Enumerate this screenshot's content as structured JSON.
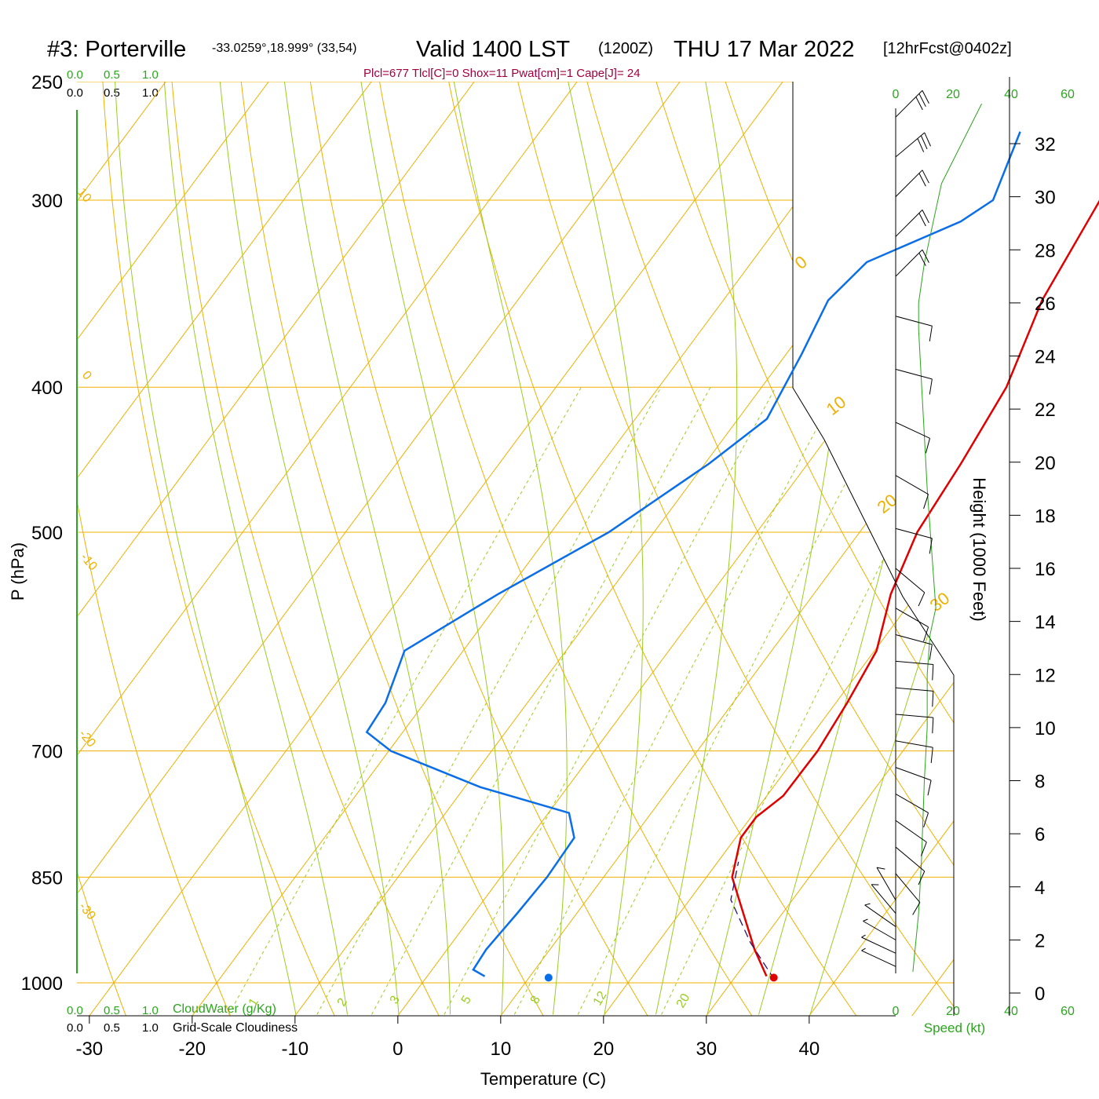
{
  "header": {
    "station": "#3: Porterville",
    "coords": "-33.0259°,18.999° (33,54)",
    "valid": "Valid 1400 LST",
    "zulu": "(1200Z)",
    "date": "THU 17 Mar 2022",
    "forecast": "[12hrFcst@0402z]",
    "indices": "Plcl=677 Tlcl[C]=0 Shox=11 Pwat[cm]=1 Cape[J]= 24"
  },
  "colors": {
    "temperature": "#e00000",
    "dewpoint": "#0a6ee8",
    "isobar_isotherm": "#f0b000",
    "moist_adiabat": "#9acd20",
    "mixing_ratio": "#9acd20",
    "green_labels": "#2aa51c",
    "index_text": "#a0003e"
  },
  "labels": {
    "top_green_scale": [
      "0.0",
      "0.5",
      "1.0"
    ],
    "top_black_scale": [
      "0.0",
      "0.5",
      "1.0"
    ],
    "bottom_green_scale": [
      "0.0",
      "0.5",
      "1.0"
    ],
    "bottom_black_scale": [
      "0.0",
      "0.5",
      "1.0"
    ],
    "cloudwater": "CloudWater (g/Kg)",
    "cloudiness": "Grid-Scale Cloudiness",
    "speed_axis": "Speed (kt)",
    "speed_ticks_top": [
      "0",
      "20",
      "40",
      "60"
    ],
    "speed_ticks_bottom": [
      "0",
      "20",
      "40",
      "60"
    ]
  },
  "chart_data": {
    "type": "line",
    "subtype": "skew-T log-P sounding",
    "xlabel": "Temperature (C)",
    "ylabel": "P (hPa)",
    "y2label": "Height (1000 Feet)",
    "x_ticks": [
      -30,
      -20,
      -10,
      0,
      10,
      20,
      30,
      40
    ],
    "y_ticks": [
      250,
      300,
      400,
      500,
      700,
      850,
      1000
    ],
    "y2_ticks": [
      0,
      2,
      4,
      6,
      8,
      10,
      12,
      14,
      16,
      18,
      20,
      22,
      24,
      26,
      28,
      30,
      32
    ],
    "isotherm_labels": [
      "10",
      "0",
      "-10",
      "-20",
      "-30",
      "0",
      "10",
      "20",
      "30"
    ],
    "mixing_ratio_labels": [
      "1",
      "2",
      "3",
      "5",
      "8",
      "12",
      "20"
    ],
    "series": [
      {
        "name": "Temperature",
        "points": [
          [
            33.0,
            990
          ],
          [
            29.9,
            950
          ],
          [
            26.3,
            900
          ],
          [
            22.5,
            850
          ],
          [
            20.5,
            800
          ],
          [
            20.5,
            775
          ],
          [
            21.6,
            750
          ],
          [
            21.7,
            700
          ],
          [
            21.1,
            650
          ],
          [
            20.2,
            600
          ],
          [
            17.5,
            550
          ],
          [
            15.6,
            500
          ],
          [
            14.9,
            450
          ],
          [
            13.8,
            400
          ],
          [
            11.0,
            350
          ],
          [
            9.4,
            300
          ],
          [
            8.0,
            270
          ]
        ]
      },
      {
        "name": "Dewpoint",
        "points": [
          [
            5.6,
            990
          ],
          [
            4.0,
            980
          ],
          [
            3.8,
            950
          ],
          [
            4.2,
            900
          ],
          [
            4.5,
            850
          ],
          [
            4.3,
            800
          ],
          [
            2.0,
            770
          ],
          [
            -8.5,
            740
          ],
          [
            -19.8,
            700
          ],
          [
            -23.5,
            680
          ],
          [
            -23.8,
            650
          ],
          [
            -25.7,
            600
          ],
          [
            -20.7,
            550
          ],
          [
            -14.4,
            500
          ],
          [
            -9.6,
            450
          ],
          [
            -7.2,
            420
          ],
          [
            -8.5,
            380
          ],
          [
            -9.8,
            350
          ],
          [
            -8.8,
            330
          ],
          [
            -2.6,
            310
          ],
          [
            -1.0,
            300
          ],
          [
            -3.3,
            270
          ]
        ]
      },
      {
        "name": "Parcel",
        "points": [
          [
            34.0,
            995
          ],
          [
            29.0,
            940
          ],
          [
            24.0,
            880
          ],
          [
            22.0,
            830
          ]
        ]
      }
    ],
    "surface_temperature_marker": [
      33.8,
      992
    ],
    "surface_dewpoint_marker": [
      11.9,
      992
    ],
    "wind_profile": [
      {
        "hgt": 1.0,
        "dir": 65,
        "spd": 10
      },
      {
        "hgt": 1.5,
        "dir": 65,
        "spd": 10
      },
      {
        "hgt": 2.0,
        "dir": 60,
        "spd": 10
      },
      {
        "hgt": 2.5,
        "dir": 55,
        "spd": 10
      },
      {
        "hgt": 3.0,
        "dir": 40,
        "spd": 10
      },
      {
        "hgt": 3.5,
        "dir": 30,
        "spd": 10
      },
      {
        "hgt": 4.5,
        "dir": 220,
        "spd": 10
      },
      {
        "hgt": 5.5,
        "dir": 230,
        "spd": 10
      },
      {
        "hgt": 6.5,
        "dir": 235,
        "spd": 10
      },
      {
        "hgt": 7.5,
        "dir": 240,
        "spd": 10
      },
      {
        "hgt": 8.5,
        "dir": 250,
        "spd": 10
      },
      {
        "hgt": 9.5,
        "dir": 260,
        "spd": 10
      },
      {
        "hgt": 10.5,
        "dir": 265,
        "spd": 10
      },
      {
        "hgt": 11.5,
        "dir": 265,
        "spd": 10
      },
      {
        "hgt": 12.5,
        "dir": 265,
        "spd": 10
      },
      {
        "hgt": 13.5,
        "dir": 255,
        "spd": 10
      },
      {
        "hgt": 14.5,
        "dir": 240,
        "spd": 10
      },
      {
        "hgt": 16.0,
        "dir": 230,
        "spd": 10
      },
      {
        "hgt": 17.5,
        "dir": 255,
        "spd": 10
      },
      {
        "hgt": 19.5,
        "dir": 240,
        "spd": 10
      },
      {
        "hgt": 21.5,
        "dir": 245,
        "spd": 10
      },
      {
        "hgt": 23.5,
        "dir": 255,
        "spd": 10
      },
      {
        "hgt": 25.5,
        "dir": 255,
        "spd": 10
      },
      {
        "hgt": 27.0,
        "dir": 315,
        "spd": 15
      },
      {
        "hgt": 28.5,
        "dir": 315,
        "spd": 15
      },
      {
        "hgt": 30.0,
        "dir": 315,
        "spd": 20
      },
      {
        "hgt": 31.5,
        "dir": 310,
        "spd": 25
      },
      {
        "hgt": 33.0,
        "dir": 315,
        "spd": 30
      }
    ],
    "speed_profile": [
      [
        6,
        0.8
      ],
      [
        8,
        3
      ],
      [
        9,
        5
      ],
      [
        10,
        8
      ],
      [
        11,
        10
      ],
      [
        11,
        12
      ],
      [
        12,
        13.5
      ],
      [
        14,
        14.5
      ],
      [
        13,
        16
      ],
      [
        12,
        17.5
      ],
      [
        11,
        19
      ],
      [
        10,
        21
      ],
      [
        9,
        23
      ],
      [
        8,
        25
      ],
      [
        8,
        26
      ],
      [
        10,
        27.5
      ],
      [
        13,
        29
      ],
      [
        16,
        30.5
      ],
      [
        23,
        32
      ],
      [
        30,
        33.5
      ]
    ],
    "speed_ylim": [
      0,
      33.5
    ],
    "speed_xlim": [
      0,
      60
    ],
    "xlim": [
      -33.5,
      40
    ],
    "ylim": [
      1050,
      250
    ]
  }
}
